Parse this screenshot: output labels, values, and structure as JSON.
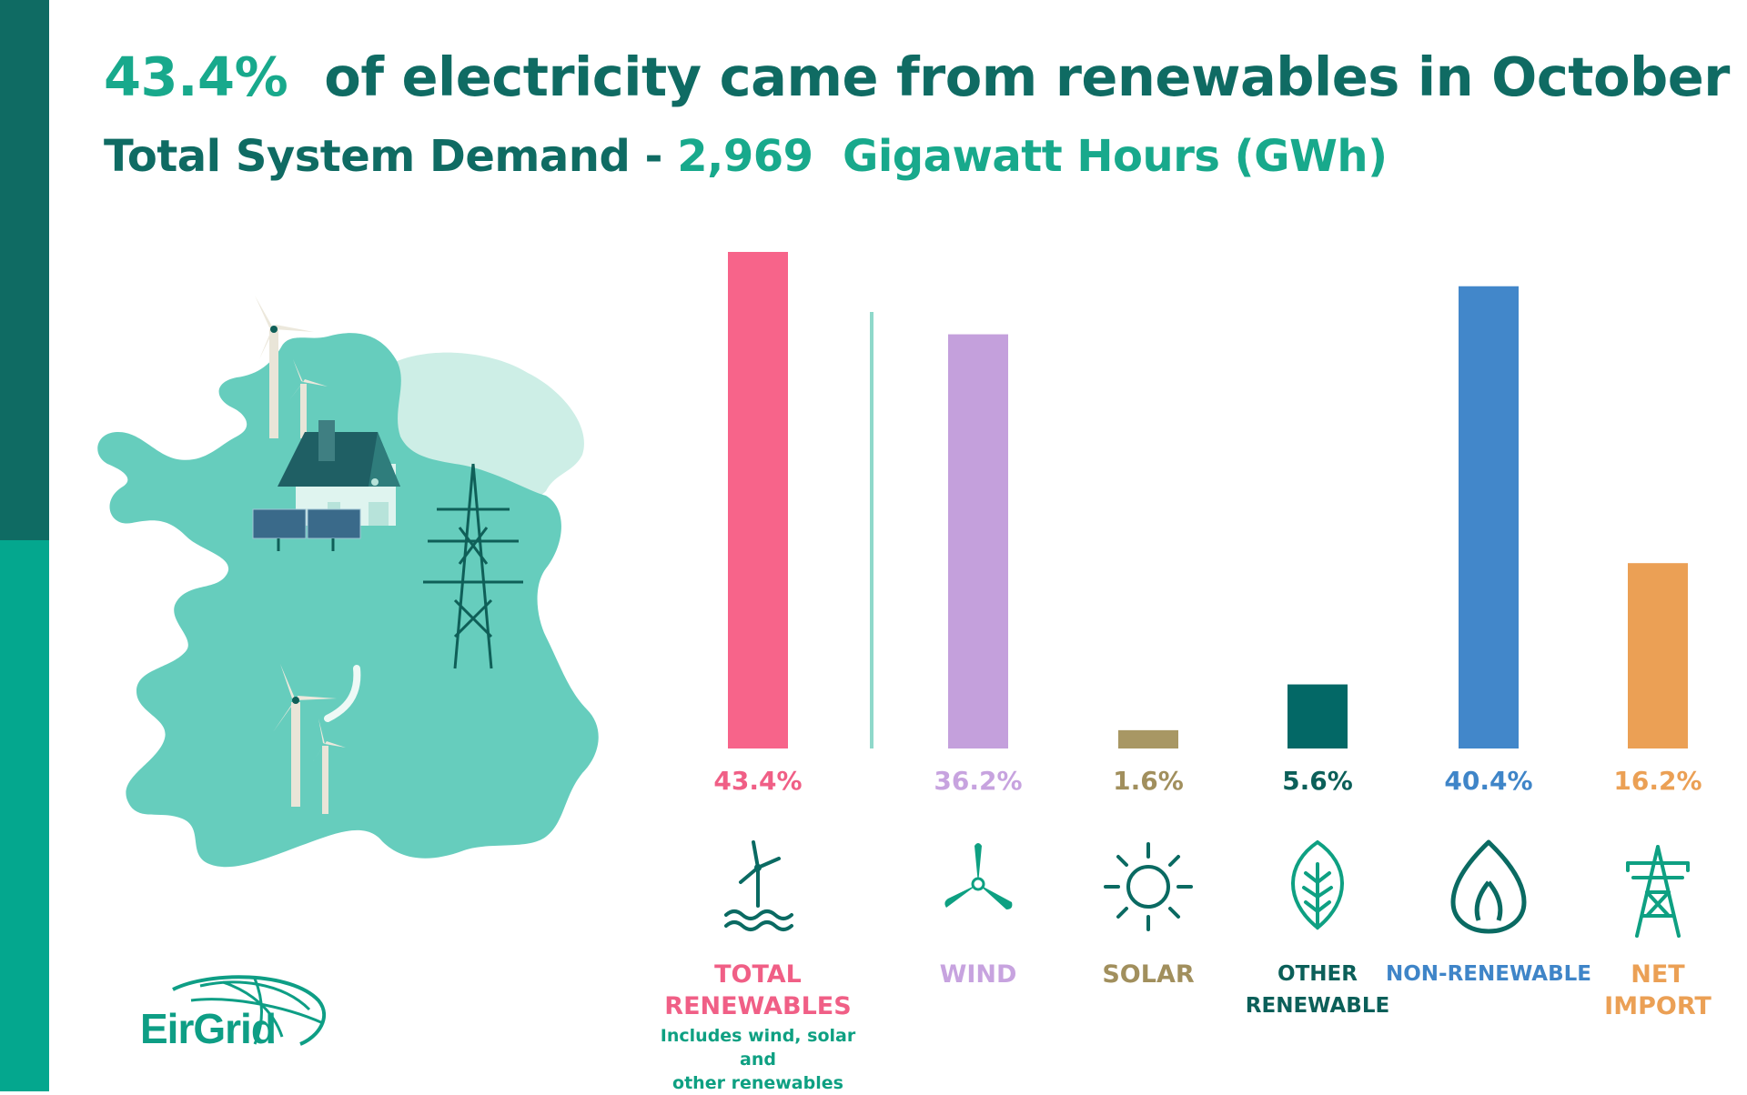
{
  "headline": {
    "pct": "43.4%",
    "rest": "of electricity came from renewables in October"
  },
  "subhead": {
    "prefix": "Total System Demand -",
    "value": "2,969",
    "unit": "Gigawatt Hours (GWh)"
  },
  "logo": {
    "text": "EirGrid"
  },
  "colors": {
    "dark_teal": "#0f6b63",
    "teal": "#04a78e",
    "map": "#66cdbd",
    "map_light": "#cdeee6",
    "total_renewables": "#f7648a",
    "wind": "#c4a0dc",
    "solar": "#a89764",
    "other_renewable": "#036866",
    "non_renewable": "#4287ca",
    "net_import": "#eba055"
  },
  "chart_data": {
    "type": "bar",
    "title": "43.4% of electricity came from renewables in October",
    "subtitle": "Total System Demand - 2,969 Gigawatt Hours (GWh)",
    "unit": "%",
    "ylim": [
      0,
      45
    ],
    "grid": false,
    "legend": "none",
    "categories": [
      "TOTAL RENEWABLES",
      "WIND",
      "SOLAR",
      "OTHER RENEWABLE",
      "NON-RENEWABLE",
      "NET IMPORT"
    ],
    "values": [
      43.4,
      36.2,
      1.6,
      5.6,
      40.4,
      16.2
    ],
    "value_labels": [
      "43.4%",
      "36.2%",
      "1.6%",
      "5.6%",
      "40.4%",
      "16.2%"
    ],
    "label_lines": [
      [
        "TOTAL",
        "RENEWABLES"
      ],
      [
        "WIND"
      ],
      [
        "SOLAR"
      ],
      [
        "OTHER",
        "RENEWABLE"
      ],
      [
        "NON-RENEWABLE"
      ],
      [
        "NET",
        "IMPORT"
      ]
    ],
    "sub_note": [
      "Includes wind, solar and",
      "other renewables"
    ],
    "icons": [
      "offshore-wind-turbine-icon",
      "wind-turbine-blades-icon",
      "sun-icon",
      "leaf-icon",
      "flame-icon",
      "pylon-icon"
    ],
    "bar_colors": [
      "#f7648a",
      "#c4a0dc",
      "#a89764",
      "#036866",
      "#4287ca",
      "#eba055"
    ],
    "label_colors": [
      "#f05f86",
      "#c7a3df",
      "#a18f5d",
      "#0b5f59",
      "#3f85c8",
      "#eba055"
    ]
  }
}
